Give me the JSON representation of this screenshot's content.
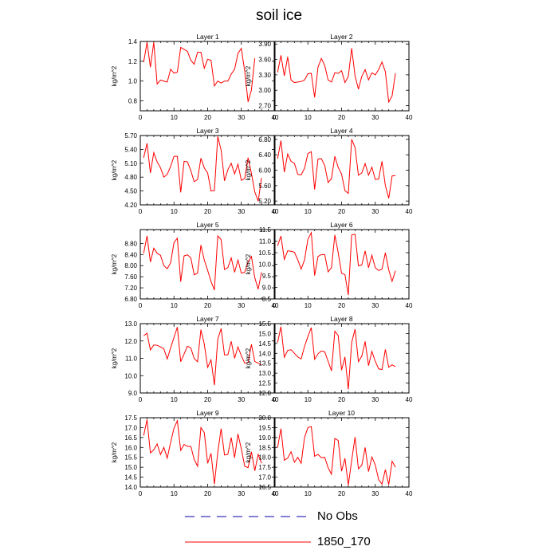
{
  "title": "soil ice",
  "legend": [
    {
      "label": "No Obs",
      "color": "#0000aa",
      "style": "dashed"
    },
    {
      "label": "1850_170",
      "color": "#ff0000",
      "style": "solid"
    }
  ],
  "chart_data": [
    {
      "type": "line",
      "title": "Layer 1",
      "ylabel": "kg/m^2",
      "xlim": [
        0,
        40
      ],
      "ylim": [
        0.7,
        1.4
      ],
      "xticks": [
        "0",
        "10",
        "20",
        "30",
        "40"
      ],
      "yticks": [
        "0.8",
        "1.0",
        "1.2",
        "1.4"
      ],
      "series": [
        {
          "color": "#ff0000",
          "values": [
            1.19,
            1.39,
            1.14,
            1.39,
            0.97,
            1.01,
            1.0,
            0.99,
            1.12,
            1.08,
            1.09,
            1.34,
            1.32,
            1.3,
            1.21,
            1.17,
            1.29,
            1.29,
            1.13,
            1.22,
            1.21,
            0.95,
            1.0,
            0.98,
            1.0,
            1.0,
            1.07,
            1.12,
            1.28,
            1.33,
            1.1,
            0.79,
            0.91,
            1.23
          ]
        }
      ]
    },
    {
      "type": "line",
      "title": "Layer 2",
      "ylabel": "kg/m^2",
      "xlim": [
        0,
        40
      ],
      "ylim": [
        2.6,
        3.95
      ],
      "xticks": [
        "0",
        "10",
        "20",
        "30",
        "40"
      ],
      "yticks": [
        "2.70",
        "3.00",
        "3.30",
        "3.60",
        "3.90"
      ],
      "series": [
        {
          "color": "#ff0000",
          "values": [
            3.35,
            3.68,
            3.28,
            3.65,
            3.2,
            3.15,
            3.16,
            3.17,
            3.2,
            3.32,
            3.33,
            2.86,
            3.45,
            3.62,
            3.48,
            3.2,
            3.16,
            3.34,
            3.33,
            3.38,
            3.15,
            3.27,
            3.82,
            3.28,
            3.02,
            3.27,
            3.4,
            3.2,
            3.34,
            3.3,
            3.4,
            3.55,
            3.36,
            2.77,
            2.89,
            3.33
          ]
        }
      ]
    },
    {
      "type": "line",
      "title": "Layer 3",
      "ylabel": "kg/m^2",
      "xlim": [
        0,
        40
      ],
      "ylim": [
        4.2,
        5.7
      ],
      "xticks": [
        "0",
        "10",
        "20",
        "30",
        "40"
      ],
      "yticks": [
        "4.20",
        "4.50",
        "4.80",
        "5.10",
        "5.40",
        "5.70"
      ],
      "series": [
        {
          "color": "#ff0000",
          "values": [
            5.22,
            5.53,
            4.89,
            5.33,
            5.13,
            5.0,
            4.8,
            4.86,
            5.03,
            5.25,
            5.25,
            4.47,
            5.14,
            5.13,
            4.94,
            4.7,
            4.75,
            5.21,
            5.0,
            4.89,
            4.5,
            4.51,
            5.68,
            5.38,
            4.72,
            4.96,
            5.1,
            4.87,
            5.08,
            4.73,
            4.77,
            5.22,
            4.88,
            4.48,
            4.28,
            4.78
          ]
        }
      ]
    },
    {
      "type": "line",
      "title": "Layer 4",
      "ylabel": "kg/m^2",
      "xlim": [
        0,
        40
      ],
      "ylim": [
        5.1,
        6.9
      ],
      "xticks": [
        "0",
        "10",
        "20",
        "30",
        "40"
      ],
      "yticks": [
        "5.20",
        "5.60",
        "6.00",
        "6.40",
        "6.80"
      ],
      "series": [
        {
          "color": "#ff0000",
          "values": [
            6.3,
            6.77,
            5.95,
            6.42,
            6.23,
            6.18,
            5.89,
            5.88,
            6.05,
            6.43,
            6.48,
            5.5,
            6.29,
            6.3,
            6.12,
            5.68,
            5.78,
            6.36,
            6.07,
            5.9,
            5.47,
            5.4,
            6.8,
            6.59,
            5.87,
            5.93,
            6.17,
            5.87,
            6.08,
            5.76,
            5.77,
            6.23,
            5.6,
            5.27,
            5.85,
            5.86
          ]
        }
      ]
    },
    {
      "type": "line",
      "title": "Layer 5",
      "ylabel": "kg/m^2",
      "xlim": [
        0,
        40
      ],
      "ylim": [
        6.8,
        9.3
      ],
      "xticks": [
        "0",
        "10",
        "20",
        "30",
        "40"
      ],
      "yticks": [
        "6.80",
        "7.20",
        "7.60",
        "8.00",
        "8.40",
        "8.80"
      ],
      "series": [
        {
          "color": "#ff0000",
          "values": [
            8.45,
            9.07,
            8.13,
            8.63,
            8.45,
            8.37,
            8.0,
            7.89,
            8.1,
            8.83,
            8.99,
            7.42,
            8.35,
            8.39,
            8.28,
            7.67,
            7.73,
            8.74,
            8.2,
            7.83,
            7.43,
            7.12,
            9.07,
            8.94,
            7.86,
            7.93,
            8.28,
            7.76,
            8.2,
            7.73,
            7.76,
            8.13,
            8.33,
            7.56,
            7.15,
            7.76
          ]
        }
      ]
    },
    {
      "type": "line",
      "title": "Layer 6",
      "ylabel": "kg/m^2",
      "xlim": [
        0,
        40
      ],
      "ylim": [
        8.5,
        11.5
      ],
      "xticks": [
        "0",
        "10",
        "20",
        "30",
        "40"
      ],
      "yticks": [
        "8.5",
        "9.0",
        "9.5",
        "10.0",
        "10.5",
        "11.0",
        "11.5"
      ],
      "series": [
        {
          "color": "#ff0000",
          "values": [
            10.8,
            11.22,
            10.21,
            10.58,
            10.56,
            10.52,
            10.19,
            9.79,
            10.19,
            11.08,
            11.37,
            9.51,
            10.34,
            10.42,
            10.42,
            9.67,
            9.85,
            11.27,
            10.5,
            9.61,
            9.55,
            8.67,
            11.27,
            11.3,
            9.93,
            9.97,
            10.58,
            9.85,
            10.39,
            9.85,
            9.73,
            9.79,
            10.5,
            9.76,
            9.26,
            9.72
          ]
        }
      ]
    },
    {
      "type": "line",
      "title": "Layer 7",
      "ylabel": "kg/m^2",
      "xlim": [
        0,
        40
      ],
      "ylim": [
        9.0,
        13.0
      ],
      "xticks": [
        "0",
        "10",
        "20",
        "30",
        "40"
      ],
      "yticks": [
        "9.0",
        "10.0",
        "11.0",
        "12.0",
        "13.0"
      ],
      "series": [
        {
          "color": "#ff0000",
          "values": [
            12.3,
            12.45,
            11.48,
            11.77,
            11.75,
            11.66,
            11.55,
            10.96,
            11.6,
            12.2,
            12.8,
            10.8,
            11.25,
            11.7,
            11.6,
            10.99,
            10.8,
            12.65,
            11.82,
            10.48,
            10.91,
            9.45,
            12.1,
            12.72,
            11.2,
            11.2,
            11.98,
            11.0,
            11.66,
            11.15,
            10.72,
            10.76,
            11.8,
            10.82,
            10.72,
            10.62
          ]
        }
      ]
    },
    {
      "type": "line",
      "title": "Layer 8",
      "ylabel": "kg/m^2",
      "xlim": [
        0,
        40
      ],
      "ylim": [
        12.0,
        15.5
      ],
      "xticks": [
        "0",
        "10",
        "20",
        "30",
        "40"
      ],
      "yticks": [
        "12.0",
        "12.5",
        "13.0",
        "13.5",
        "14.0",
        "14.5",
        "15.0",
        "15.5"
      ],
      "series": [
        {
          "color": "#ff0000",
          "values": [
            14.55,
            15.35,
            13.8,
            14.15,
            14.18,
            14.0,
            13.82,
            13.72,
            14.35,
            14.85,
            15.3,
            13.7,
            13.98,
            14.12,
            14.08,
            13.6,
            13.12,
            15.12,
            14.9,
            13.15,
            13.82,
            12.18,
            14.55,
            15.22,
            13.58,
            13.86,
            14.6,
            13.38,
            14.1,
            13.6,
            13.22,
            13.18,
            14.2,
            13.3,
            13.42,
            13.33
          ]
        }
      ]
    },
    {
      "type": "line",
      "title": "Layer 9",
      "ylabel": "kg/m^2",
      "xlim": [
        0,
        40
      ],
      "ylim": [
        14.0,
        17.5
      ],
      "xticks": [
        "0",
        "10",
        "20",
        "30",
        "40"
      ],
      "yticks": [
        "14.0",
        "14.5",
        "15.0",
        "15.5",
        "16.0",
        "16.5",
        "17.0",
        "17.5"
      ],
      "series": [
        {
          "color": "#ff0000",
          "values": [
            16.6,
            17.4,
            15.72,
            15.88,
            16.18,
            15.64,
            16.0,
            15.46,
            16.25,
            16.97,
            17.35,
            15.85,
            16.15,
            16.05,
            16.05,
            15.4,
            15.05,
            17.0,
            16.75,
            15.2,
            15.7,
            14.15,
            15.75,
            16.95,
            15.62,
            15.65,
            16.5,
            15.48,
            16.68,
            15.92,
            15.05,
            14.98,
            15.78,
            14.82,
            15.65,
            15.2
          ]
        }
      ]
    },
    {
      "type": "line",
      "title": "Layer 10",
      "ylabel": "kg/m^2",
      "xlim": [
        0,
        40
      ],
      "ylim": [
        16.5,
        20.0
      ],
      "xticks": [
        "0",
        "10",
        "20",
        "30",
        "40"
      ],
      "yticks": [
        "16.5",
        "17.0",
        "17.5",
        "18.0",
        "18.5",
        "19.0",
        "19.5",
        "20.0"
      ],
      "series": [
        {
          "color": "#ff0000",
          "values": [
            18.5,
            19.45,
            17.85,
            17.96,
            18.28,
            17.75,
            18.0,
            17.7,
            19.0,
            19.5,
            19.55,
            18.05,
            18.15,
            17.98,
            18.0,
            17.48,
            17.15,
            18.95,
            18.85,
            17.3,
            17.95,
            16.6,
            17.85,
            19.02,
            17.42,
            17.6,
            18.5,
            17.28,
            18.02,
            17.62,
            16.88,
            16.65,
            17.38,
            16.62,
            17.8,
            17.5
          ]
        }
      ]
    }
  ]
}
